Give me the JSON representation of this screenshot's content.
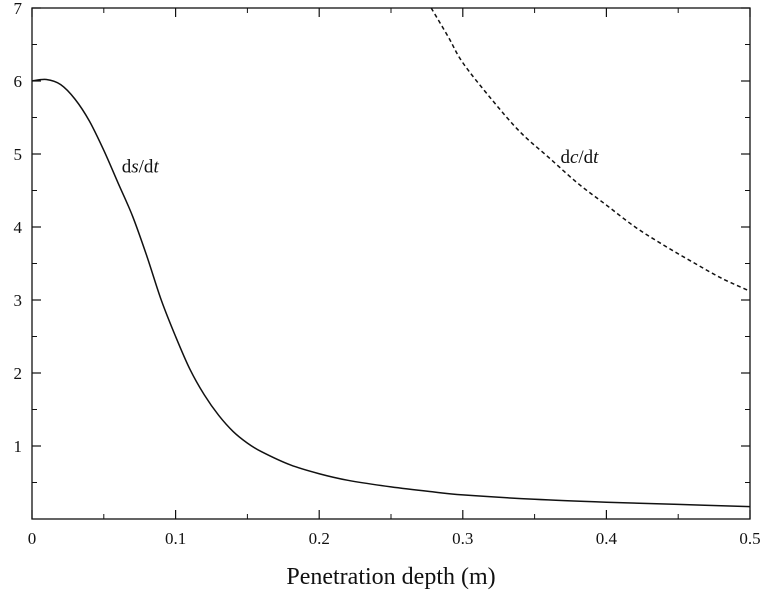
{
  "chart_data": {
    "type": "line",
    "title": "",
    "xlabel": "Penetration depth (m)",
    "ylabel": "",
    "xlim": [
      0,
      0.5
    ],
    "ylim": [
      0,
      7
    ],
    "grid": false,
    "x_ticks": [
      0,
      0.1,
      0.2,
      0.3,
      0.4,
      0.5
    ],
    "x_tick_labels": [
      "0",
      "0.1",
      "0.2",
      "0.3",
      "0.4",
      "0.5"
    ],
    "y_ticks": [
      1,
      2,
      3,
      4,
      5,
      6,
      7
    ],
    "y_tick_labels": [
      "1",
      "2",
      "3",
      "4",
      "5",
      "6",
      "7"
    ],
    "series": [
      {
        "name": "ds/dt",
        "label_parts": [
          "d",
          "s",
          "/d",
          "t"
        ],
        "style": "solid",
        "color": "#111111",
        "label_at": [
          0.0625,
          4.75
        ],
        "points": [
          [
            0.0,
            6.0
          ],
          [
            0.01,
            6.02
          ],
          [
            0.02,
            5.95
          ],
          [
            0.03,
            5.75
          ],
          [
            0.04,
            5.45
          ],
          [
            0.05,
            5.05
          ],
          [
            0.06,
            4.6
          ],
          [
            0.07,
            4.15
          ],
          [
            0.08,
            3.6
          ],
          [
            0.09,
            3.0
          ],
          [
            0.1,
            2.5
          ],
          [
            0.11,
            2.05
          ],
          [
            0.12,
            1.7
          ],
          [
            0.13,
            1.42
          ],
          [
            0.14,
            1.2
          ],
          [
            0.15,
            1.04
          ],
          [
            0.16,
            0.92
          ],
          [
            0.18,
            0.74
          ],
          [
            0.2,
            0.62
          ],
          [
            0.22,
            0.53
          ],
          [
            0.25,
            0.44
          ],
          [
            0.28,
            0.37
          ],
          [
            0.3,
            0.33
          ],
          [
            0.35,
            0.27
          ],
          [
            0.4,
            0.23
          ],
          [
            0.45,
            0.2
          ],
          [
            0.5,
            0.17
          ]
        ]
      },
      {
        "name": "dc/dt",
        "label_parts": [
          "d",
          "c",
          "/d",
          "t"
        ],
        "style": "dashed",
        "color": "#111111",
        "label_at": [
          0.368,
          4.88
        ],
        "points": [
          [
            0.278,
            7.0
          ],
          [
            0.29,
            6.6
          ],
          [
            0.3,
            6.25
          ],
          [
            0.32,
            5.75
          ],
          [
            0.34,
            5.3
          ],
          [
            0.36,
            4.95
          ],
          [
            0.38,
            4.6
          ],
          [
            0.4,
            4.3
          ],
          [
            0.42,
            4.0
          ],
          [
            0.44,
            3.75
          ],
          [
            0.46,
            3.52
          ],
          [
            0.48,
            3.3
          ],
          [
            0.5,
            3.12
          ]
        ]
      }
    ]
  }
}
